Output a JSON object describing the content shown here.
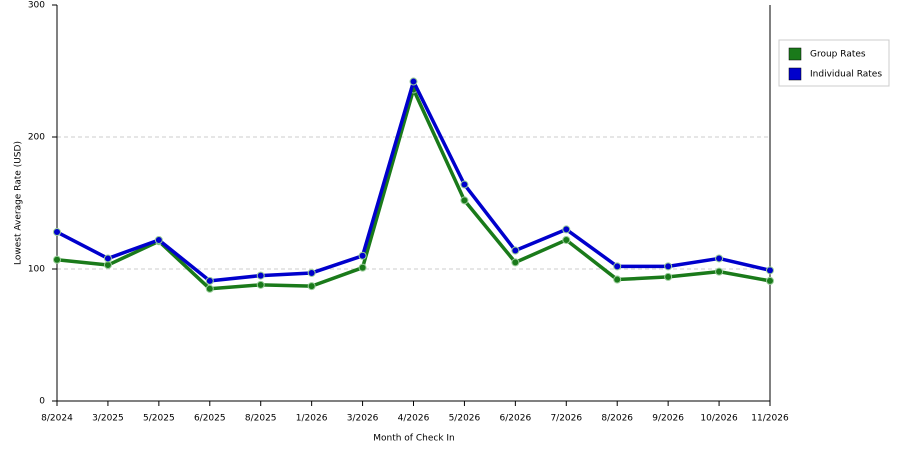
{
  "chart_data": {
    "type": "line",
    "x_label": "Month of Check In",
    "y_label": "Lowest Average Rate (USD)",
    "categories": [
      "8/2024",
      "3/2025",
      "5/2025",
      "6/2025",
      "8/2025",
      "1/2026",
      "3/2026",
      "4/2026",
      "5/2026",
      "6/2026",
      "7/2026",
      "8/2026",
      "9/2026",
      "10/2026",
      "11/2026"
    ],
    "series": [
      {
        "name": "Group Rates",
        "color": "#1a7a1a",
        "values": [
          107,
          103,
          121,
          85,
          88,
          87,
          101,
          236,
          152,
          105,
          122,
          92,
          94,
          98,
          91
        ]
      },
      {
        "name": "Individual Rates",
        "color": "#0000cc",
        "values": [
          128,
          108,
          122,
          91,
          95,
          97,
          110,
          242,
          164,
          114,
          130,
          102,
          102,
          108,
          99
        ]
      }
    ],
    "ylim": [
      0,
      300
    ],
    "yticks": [
      0,
      100,
      200,
      300
    ],
    "grid": true,
    "legend": "right"
  }
}
